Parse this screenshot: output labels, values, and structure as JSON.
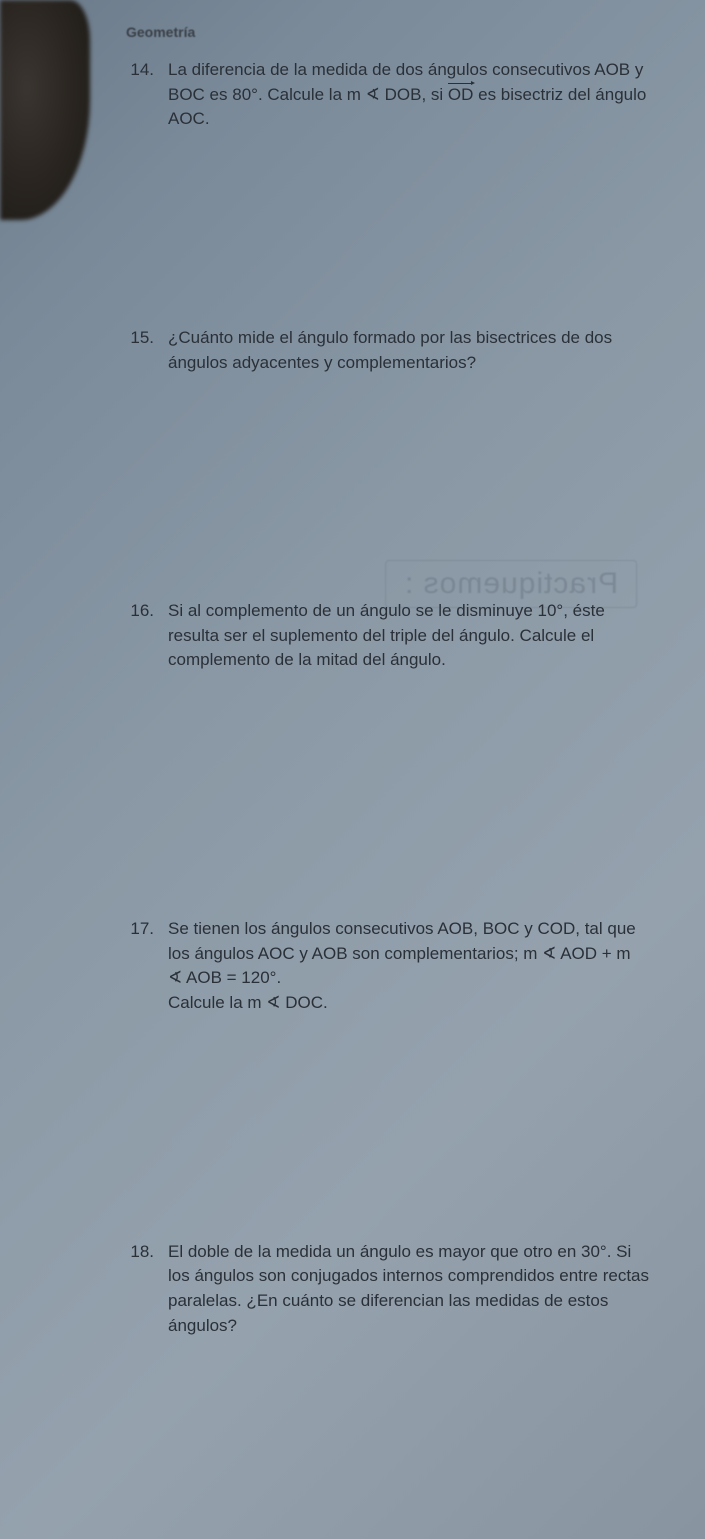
{
  "header": {
    "subject": "Geometría"
  },
  "watermark": "Practiquemos :",
  "problems": [
    {
      "number": "14.",
      "text_html": "La diferencia de la medida de dos ángulos consecutivos AOB y BOC es 80°. Calcule la m ∢ DOB, si <span class=\"arrow\">OD</span> es bisectriz del ángulo AOC.",
      "gap_class": "gap-sm"
    },
    {
      "number": "15.",
      "text_html": "¿Cuánto mide el ángulo formado por las bisectrices de dos ángulos adyacentes y complementarios?",
      "gap_class": "gap-md"
    },
    {
      "number": "16.",
      "text_html": "Si al complemento de un ángulo se le disminuye 10°, éste resulta ser el suplemento del triple del ángulo. Calcule el complemento de la mitad del ángulo.",
      "gap_class": "gap-lg"
    },
    {
      "number": "17.",
      "text_html": "Se tienen los ángulos consecutivos AOB, BOC y COD, tal que los ángulos AOC y AOB son complementarios; m ∢ AOD + m ∢ AOB = 120°.<br>Calcule la m ∢ DOC.",
      "gap_class": "gap-md"
    },
    {
      "number": "18.",
      "text_html": "El doble de la medida un ángulo es mayor que otro en 30°. Si los ángulos son conjugados internos comprendidos entre rectas paralelas. ¿En cuánto se diferencian las medidas de estos ángulos?",
      "gap_class": ""
    }
  ],
  "style": {
    "body_fontsize": 17,
    "text_color": "#2a3038",
    "bg_gradient": [
      "#6b7a8a",
      "#8894a0"
    ],
    "watermark_color": "rgba(60,70,80,0.22)"
  }
}
